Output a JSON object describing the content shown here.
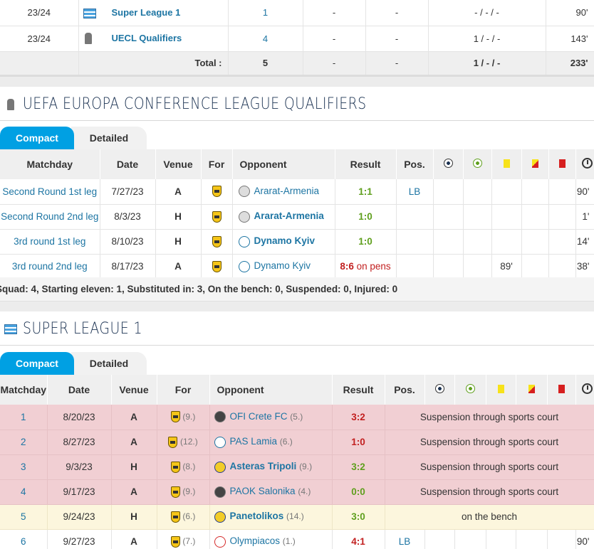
{
  "summary": {
    "rows": [
      {
        "season": "23/24",
        "competition": "Super League 1",
        "icon": "super-league-icon",
        "apps": "1",
        "c1": "-",
        "c2": "-",
        "cards": "- / - / -",
        "minutes": "90'"
      },
      {
        "season": "23/24",
        "competition": "UECL Qualifiers",
        "icon": "conference-league-icon",
        "apps": "4",
        "c1": "-",
        "c2": "-",
        "cards": "1 / - / -",
        "minutes": "143'"
      }
    ],
    "total": {
      "label": "Total :",
      "apps": "5",
      "c1": "-",
      "c2": "-",
      "cards": "1 / - / -",
      "minutes": "233'"
    }
  },
  "ecl": {
    "title": "UEFA EUROPA CONFERENCE LEAGUE QUALIFIERS",
    "tabs": {
      "compact": "Compact",
      "detailed": "Detailed"
    },
    "headers": {
      "matchday": "Matchday",
      "date": "Date",
      "venue": "Venue",
      "for": "For",
      "opponent": "Opponent",
      "result": "Result",
      "pos": "Pos."
    },
    "rows": [
      {
        "matchday": "Second Round 1st leg",
        "date": "7/27/23",
        "venue": "A",
        "opponent": "Ararat-Armenia",
        "opp_bold": false,
        "result": "1:1",
        "result_extra": "",
        "pos": "LB",
        "yellow": "",
        "minutes": "90'"
      },
      {
        "matchday": "Second Round 2nd leg",
        "date": "8/3/23",
        "venue": "H",
        "opponent": "Ararat-Armenia",
        "opp_bold": true,
        "result": "1:0",
        "result_extra": "",
        "pos": "",
        "yellow": "",
        "minutes": "1'"
      },
      {
        "matchday": "3rd round 1st leg",
        "date": "8/10/23",
        "venue": "H",
        "opponent": "Dynamo Kyiv",
        "opp_bold": true,
        "result": "1:0",
        "result_extra": "",
        "pos": "",
        "yellow": "",
        "minutes": "14'"
      },
      {
        "matchday": "3rd round 2nd leg",
        "date": "8/17/23",
        "venue": "A",
        "opponent": "Dynamo Kyiv",
        "opp_bold": false,
        "result": "8:6",
        "result_extra": " on pens",
        "pos": "",
        "yellow": "89'",
        "minutes": "38'"
      }
    ],
    "footer": "Squad: 4, Starting eleven: 1, Substituted in: 3, On the bench: 0, Suspended: 0, Injured: 0"
  },
  "sl": {
    "title": "SUPER LEAGUE 1",
    "tabs": {
      "compact": "Compact",
      "detailed": "Detailed"
    },
    "headers": {
      "matchday": "Matchday",
      "date": "Date",
      "venue": "Venue",
      "for": "For",
      "opponent": "Opponent",
      "result": "Result",
      "pos": "Pos."
    },
    "rows": [
      {
        "matchday": "1",
        "date": "8/20/23",
        "venue": "A",
        "for_rank": "(9.)",
        "opponent": "OFI Crete FC",
        "opp_rank": "(5.)",
        "opp_bold": false,
        "result": "3:2",
        "res_color": "r",
        "status": "Suspension through sports court",
        "type": "red"
      },
      {
        "matchday": "2",
        "date": "8/27/23",
        "venue": "A",
        "for_rank": "(12.)",
        "opponent": "PAS Lamia",
        "opp_rank": "(6.)",
        "opp_bold": false,
        "result": "1:0",
        "res_color": "r",
        "status": "Suspension through sports court",
        "type": "red"
      },
      {
        "matchday": "3",
        "date": "9/3/23",
        "venue": "H",
        "for_rank": "(8.)",
        "opponent": "Asteras Tripoli",
        "opp_rank": "(9.)",
        "opp_bold": true,
        "result": "3:2",
        "res_color": "g",
        "status": "Suspension through sports court",
        "type": "red"
      },
      {
        "matchday": "4",
        "date": "9/17/23",
        "venue": "A",
        "for_rank": "(9.)",
        "opponent": "PAOK Salonika",
        "opp_rank": "(4.)",
        "opp_bold": false,
        "result": "0:0",
        "res_color": "g",
        "status": "Suspension through sports court",
        "type": "red"
      },
      {
        "matchday": "5",
        "date": "9/24/23",
        "venue": "H",
        "for_rank": "(6.)",
        "opponent": "Panetolikos",
        "opp_rank": "(14.)",
        "opp_bold": true,
        "result": "3:0",
        "res_color": "g",
        "status": "on the bench",
        "type": "yellow"
      },
      {
        "matchday": "6",
        "date": "9/27/23",
        "venue": "A",
        "for_rank": "(7.)",
        "opponent": "Olympiacos",
        "opp_rank": "(1.)",
        "opp_bold": false,
        "result": "4:1",
        "res_color": "r",
        "pos": "LB",
        "minutes": "90'",
        "type": "normal"
      }
    ]
  },
  "colors": {
    "accent": "#00a0e3",
    "link": "#1d75a3",
    "win": "#5f9f1d",
    "loss": "#c22020",
    "suspension_bg": "#f1cfd3",
    "bench_bg": "#fcf6dd"
  }
}
